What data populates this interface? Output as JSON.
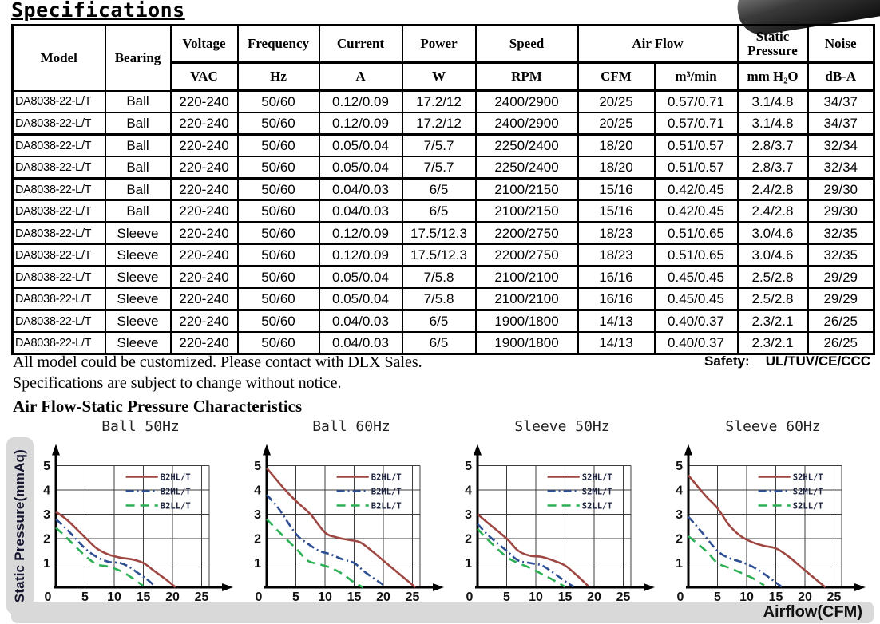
{
  "page": {
    "title": "Specifications",
    "note_line1": "All model could be customized. Please contact with DLX Sales.",
    "note_line2": "Specifications are subject to change without notice.",
    "safety_label": "Safety:",
    "safety_value": "UL/TUV/CE/CCC",
    "section2_title": "Air Flow-Static Pressure Characteristics",
    "airflow_axis_label": "Airflow(CFM)",
    "pressure_axis_label": "Static Pressure(mmAq)"
  },
  "table": {
    "header": {
      "model": "Model",
      "bearing": "Bearing",
      "voltage": "Voltage",
      "voltage_unit": "VAC",
      "frequency": "Frequency",
      "frequency_unit": "Hz",
      "current": "Current",
      "current_unit": "A",
      "power": "Power",
      "power_unit": "W",
      "speed": "Speed",
      "speed_unit": "RPM",
      "airflow": "Air Flow",
      "airflow_unit_cfm": "CFM",
      "airflow_unit_m3": "m³/min",
      "static_pressure": "Static Pressure",
      "static_pressure_unit": "mm H₂O",
      "noise": "Noise",
      "noise_unit": "dB-A"
    },
    "rows": [
      {
        "model": "DA8038-22-L/T",
        "bearing": "Ball",
        "voltage": "220-240",
        "frequency": "50/60",
        "current": "0.12/0.09",
        "power": "17.2/12",
        "speed": "2400/2900",
        "airflow_cfm": "20/25",
        "airflow_m3": "0.57/0.71",
        "static_pressure": "3.1/4.8",
        "noise": "34/37"
      },
      {
        "model": "DA8038-22-L/T",
        "bearing": "Ball",
        "voltage": "220-240",
        "frequency": "50/60",
        "current": "0.12/0.09",
        "power": "17.2/12",
        "speed": "2400/2900",
        "airflow_cfm": "20/25",
        "airflow_m3": "0.57/0.71",
        "static_pressure": "3.1/4.8",
        "noise": "34/37"
      },
      {
        "model": "DA8038-22-L/T",
        "bearing": "Ball",
        "voltage": "220-240",
        "frequency": "50/60",
        "current": "0.05/0.04",
        "power": "7/5.7",
        "speed": "2250/2400",
        "airflow_cfm": "18/20",
        "airflow_m3": "0.51/0.57",
        "static_pressure": "2.8/3.7",
        "noise": "32/34"
      },
      {
        "model": "DA8038-22-L/T",
        "bearing": "Ball",
        "voltage": "220-240",
        "frequency": "50/60",
        "current": "0.05/0.04",
        "power": "7/5.7",
        "speed": "2250/2400",
        "airflow_cfm": "18/20",
        "airflow_m3": "0.51/0.57",
        "static_pressure": "2.8/3.7",
        "noise": "32/34"
      },
      {
        "model": "DA8038-22-L/T",
        "bearing": "Ball",
        "voltage": "220-240",
        "frequency": "50/60",
        "current": "0.04/0.03",
        "power": "6/5",
        "speed": "2100/2150",
        "airflow_cfm": "15/16",
        "airflow_m3": "0.42/0.45",
        "static_pressure": "2.4/2.8",
        "noise": "29/30"
      },
      {
        "model": "DA8038-22-L/T",
        "bearing": "Ball",
        "voltage": "220-240",
        "frequency": "50/60",
        "current": "0.04/0.03",
        "power": "6/5",
        "speed": "2100/2150",
        "airflow_cfm": "15/16",
        "airflow_m3": "0.42/0.45",
        "static_pressure": "2.4/2.8",
        "noise": "29/30"
      },
      {
        "model": "DA8038-22-L/T",
        "bearing": "Sleeve",
        "voltage": "220-240",
        "frequency": "50/60",
        "current": "0.12/0.09",
        "power": "17.5/12.3",
        "speed": "2200/2750",
        "airflow_cfm": "18/23",
        "airflow_m3": "0.51/0.65",
        "static_pressure": "3.0/4.6",
        "noise": "32/35"
      },
      {
        "model": "DA8038-22-L/T",
        "bearing": "Sleeve",
        "voltage": "220-240",
        "frequency": "50/60",
        "current": "0.12/0.09",
        "power": "17.5/12.3",
        "speed": "2200/2750",
        "airflow_cfm": "18/23",
        "airflow_m3": "0.51/0.65",
        "static_pressure": "3.0/4.6",
        "noise": "32/35"
      },
      {
        "model": "DA8038-22-L/T",
        "bearing": "Sleeve",
        "voltage": "220-240",
        "frequency": "50/60",
        "current": "0.05/0.04",
        "power": "7/5.8",
        "speed": "2100/2100",
        "airflow_cfm": "16/16",
        "airflow_m3": "0.45/0.45",
        "static_pressure": "2.5/2.8",
        "noise": "29/29"
      },
      {
        "model": "DA8038-22-L/T",
        "bearing": "Sleeve",
        "voltage": "220-240",
        "frequency": "50/60",
        "current": "0.05/0.04",
        "power": "7/5.8",
        "speed": "2100/2100",
        "airflow_cfm": "16/16",
        "airflow_m3": "0.45/0.45",
        "static_pressure": "2.5/2.8",
        "noise": "29/29"
      },
      {
        "model": "DA8038-22-L/T",
        "bearing": "Sleeve",
        "voltage": "220-240",
        "frequency": "50/60",
        "current": "0.04/0.03",
        "power": "6/5",
        "speed": "1900/1800",
        "airflow_cfm": "14/13",
        "airflow_m3": "0.40/0.37",
        "static_pressure": "2.3/2.1",
        "noise": "26/25"
      },
      {
        "model": "DA8038-22-L/T",
        "bearing": "Sleeve",
        "voltage": "220-240",
        "frequency": "50/60",
        "current": "0.04/0.03",
        "power": "6/5",
        "speed": "1900/1800",
        "airflow_cfm": "14/13",
        "airflow_m3": "0.40/0.37",
        "static_pressure": "2.3/2.1",
        "noise": "26/25"
      }
    ]
  },
  "chart_data": [
    {
      "type": "line",
      "title": "Ball 50Hz",
      "xlabel": "Airflow(CFM)",
      "ylabel": "Static Pressure(mmAq)",
      "xlim": [
        0,
        25
      ],
      "ylim": [
        0,
        5
      ],
      "xticks": [
        0,
        5,
        10,
        15,
        20,
        25
      ],
      "yticks": [
        0,
        1,
        2,
        3,
        4,
        5
      ],
      "grid": true,
      "legend_position": "top-right",
      "series": [
        {
          "name": "B2HL/T",
          "color": "#9e4742",
          "style": "solid",
          "points": [
            [
              0,
              3.1
            ],
            [
              2,
              2.75
            ],
            [
              5,
              2.05
            ],
            [
              7,
              1.6
            ],
            [
              9,
              1.35
            ],
            [
              11,
              1.22
            ],
            [
              13,
              1.15
            ],
            [
              15,
              1.0
            ],
            [
              17,
              0.65
            ],
            [
              19,
              0.3
            ],
            [
              20.5,
              0
            ]
          ]
        },
        {
          "name": "B2ML/T",
          "color": "#2e4f93",
          "style": "dashdot",
          "points": [
            [
              0,
              2.8
            ],
            [
              2,
              2.35
            ],
            [
              5,
              1.6
            ],
            [
              7,
              1.25
            ],
            [
              9,
              1.05
            ],
            [
              11,
              1.0
            ],
            [
              12.5,
              0.85
            ],
            [
              14,
              0.6
            ],
            [
              15.5,
              0.35
            ],
            [
              17,
              0.05
            ]
          ]
        },
        {
          "name": "B2LL/T",
          "color": "#2bb054",
          "style": "dashed",
          "points": [
            [
              0,
              2.45
            ],
            [
              2,
              2.0
            ],
            [
              5,
              1.3
            ],
            [
              7,
              0.95
            ],
            [
              9,
              0.85
            ],
            [
              11,
              0.68
            ],
            [
              13,
              0.4
            ],
            [
              15,
              0.05
            ]
          ]
        }
      ]
    },
    {
      "type": "line",
      "title": "Ball 60Hz",
      "xlabel": "Airflow(CFM)",
      "ylabel": "Static Pressure(mmAq)",
      "xlim": [
        0,
        25
      ],
      "ylim": [
        0,
        5
      ],
      "xticks": [
        0,
        5,
        10,
        15,
        20,
        25
      ],
      "yticks": [
        0,
        1,
        2,
        3,
        4,
        5
      ],
      "grid": true,
      "legend_position": "top-right",
      "series": [
        {
          "name": "B2HL/T",
          "color": "#9e4742",
          "style": "solid",
          "points": [
            [
              0,
              4.9
            ],
            [
              3,
              4.05
            ],
            [
              5,
              3.55
            ],
            [
              7.5,
              3.0
            ],
            [
              10,
              2.25
            ],
            [
              12,
              2.05
            ],
            [
              14,
              1.95
            ],
            [
              16,
              1.85
            ],
            [
              18,
              1.5
            ],
            [
              20,
              1.1
            ],
            [
              23,
              0.5
            ],
            [
              25.5,
              0
            ]
          ]
        },
        {
          "name": "B2ML/T",
          "color": "#2e4f93",
          "style": "dashdot",
          "points": [
            [
              0,
              3.8
            ],
            [
              2,
              3.25
            ],
            [
              5,
              2.2
            ],
            [
              7,
              1.8
            ],
            [
              9,
              1.5
            ],
            [
              11,
              1.35
            ],
            [
              13,
              1.15
            ],
            [
              15,
              1.0
            ],
            [
              17,
              0.6
            ],
            [
              20,
              0.1
            ]
          ]
        },
        {
          "name": "B2LL/T",
          "color": "#2bb054",
          "style": "dashed",
          "points": [
            [
              0,
              2.8
            ],
            [
              2,
              2.3
            ],
            [
              5,
              1.6
            ],
            [
              7,
              1.1
            ],
            [
              9,
              0.95
            ],
            [
              11,
              0.8
            ],
            [
              13,
              0.55
            ],
            [
              15,
              0.2
            ],
            [
              16.5,
              0
            ]
          ]
        }
      ]
    },
    {
      "type": "line",
      "title": "Sleeve 50Hz",
      "xlabel": "Airflow(CFM)",
      "ylabel": "Static Pressure(mmAq)",
      "xlim": [
        0,
        25
      ],
      "ylim": [
        0,
        5
      ],
      "xticks": [
        0,
        5,
        10,
        15,
        20,
        25
      ],
      "yticks": [
        0,
        1,
        2,
        3,
        4,
        5
      ],
      "grid": true,
      "legend_position": "top-right",
      "series": [
        {
          "name": "S2HL/T",
          "color": "#9e4742",
          "style": "solid",
          "points": [
            [
              0,
              3.0
            ],
            [
              2,
              2.6
            ],
            [
              5,
              2.0
            ],
            [
              7,
              1.5
            ],
            [
              9,
              1.3
            ],
            [
              11,
              1.25
            ],
            [
              13,
              1.1
            ],
            [
              15,
              0.9
            ],
            [
              17,
              0.5
            ],
            [
              19,
              0.05
            ]
          ]
        },
        {
          "name": "S2ML/T",
          "color": "#2e4f93",
          "style": "dashdot",
          "points": [
            [
              0,
              2.6
            ],
            [
              2,
              2.1
            ],
            [
              5,
              1.5
            ],
            [
              7,
              1.1
            ],
            [
              9,
              1.0
            ],
            [
              11,
              0.9
            ],
            [
              13,
              0.6
            ],
            [
              15,
              0.25
            ],
            [
              16.5,
              0.02
            ]
          ]
        },
        {
          "name": "S2LL/T",
          "color": "#2bb054",
          "style": "dashed",
          "points": [
            [
              0,
              2.4
            ],
            [
              2,
              1.9
            ],
            [
              5,
              1.25
            ],
            [
              7,
              1.0
            ],
            [
              9,
              0.8
            ],
            [
              11,
              0.55
            ],
            [
              13,
              0.3
            ],
            [
              15,
              0.02
            ]
          ]
        }
      ]
    },
    {
      "type": "line",
      "title": "Sleeve 60Hz",
      "xlabel": "Airflow(CFM)",
      "ylabel": "Static Pressure(mmAq)",
      "xlim": [
        0,
        25
      ],
      "ylim": [
        0,
        5
      ],
      "xticks": [
        0,
        5,
        10,
        15,
        20,
        25
      ],
      "yticks": [
        0,
        1,
        2,
        3,
        4,
        5
      ],
      "grid": true,
      "legend_position": "top-right",
      "series": [
        {
          "name": "S2HL/T",
          "color": "#9e4742",
          "style": "solid",
          "points": [
            [
              0,
              4.6
            ],
            [
              3,
              3.75
            ],
            [
              5,
              3.25
            ],
            [
              7,
              2.55
            ],
            [
              9,
              2.1
            ],
            [
              11,
              1.85
            ],
            [
              13,
              1.7
            ],
            [
              15,
              1.6
            ],
            [
              17,
              1.3
            ],
            [
              20,
              0.7
            ],
            [
              23.5,
              0
            ]
          ]
        },
        {
          "name": "S2ML/T",
          "color": "#2e4f93",
          "style": "dashdot",
          "points": [
            [
              0,
              2.9
            ],
            [
              2,
              2.35
            ],
            [
              5,
              1.5
            ],
            [
              7,
              1.2
            ],
            [
              9,
              1.05
            ],
            [
              11,
              0.85
            ],
            [
              13,
              0.55
            ],
            [
              15,
              0.2
            ],
            [
              16,
              0.02
            ]
          ]
        },
        {
          "name": "S2LL/T",
          "color": "#2bb054",
          "style": "dashed",
          "points": [
            [
              0,
              2.1
            ],
            [
              3,
              1.5
            ],
            [
              5,
              1.0
            ],
            [
              7,
              0.8
            ],
            [
              9,
              0.6
            ],
            [
              11,
              0.38
            ],
            [
              13,
              0.08
            ]
          ]
        }
      ]
    }
  ]
}
